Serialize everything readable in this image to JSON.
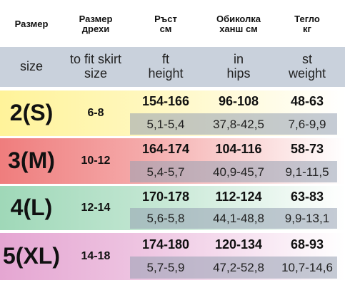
{
  "header_ru": [
    [
      "Размер"
    ],
    [
      "Размер",
      "дрехи"
    ],
    [
      "Ръст",
      "см"
    ],
    [
      "Обиколка",
      "ханш см"
    ],
    [
      "Тегло",
      "кг"
    ]
  ],
  "header_en": [
    [
      "size"
    ],
    [
      "to fit skirt",
      "size"
    ],
    [
      "ft",
      "height"
    ],
    [
      "in",
      "hips"
    ],
    [
      "st",
      "weight"
    ]
  ],
  "rows": [
    {
      "size": "2(S)",
      "fit": "6-8",
      "metric": [
        "154-166",
        "96-108",
        "48-63"
      ],
      "imperial": [
        "5,1-5,4",
        "37,8-42,5",
        "7,6-9,9"
      ]
    },
    {
      "size": "3(M)",
      "fit": "10-12",
      "metric": [
        "164-174",
        "104-116",
        "58-73"
      ],
      "imperial": [
        "5,4-5,7",
        "40,9-45,7",
        "9,1-11,5"
      ]
    },
    {
      "size": "4(L)",
      "fit": "12-14",
      "metric": [
        "170-178",
        "112-124",
        "63-83"
      ],
      "imperial": [
        "5,6-5,8",
        "44,1-48,8",
        "9,9-13,1"
      ]
    },
    {
      "size": "5(XL)",
      "fit": "14-18",
      "metric": [
        "174-180",
        "120-134",
        "68-93"
      ],
      "imperial": [
        "5,7-5,9",
        "47,2-52,8",
        "10,7-14,6"
      ]
    }
  ]
}
